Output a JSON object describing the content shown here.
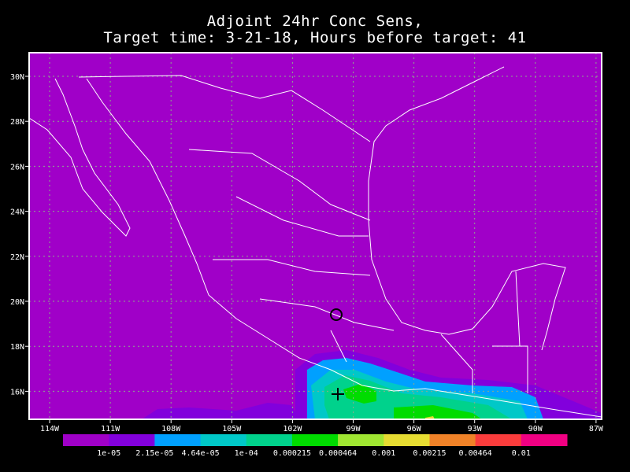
{
  "title": {
    "line1": "Adjoint 24hr Conc Sens,",
    "line2": "Target time: 3-21-18, Hours before target: 41"
  },
  "map": {
    "lon_range": [
      "115W",
      "86.7W"
    ],
    "lat_range": [
      "14.7N",
      "31N"
    ],
    "lon_ticks": [
      "114W",
      "111W",
      "108W",
      "105W",
      "102W",
      "99W",
      "96W",
      "93W",
      "90W",
      "87W"
    ],
    "lat_ticks": [
      "30N",
      "28N",
      "26N",
      "24N",
      "22N",
      "20N",
      "18N",
      "16N"
    ],
    "grid": true,
    "background_color": "#a000c8",
    "coastline_color": "#ffffff",
    "gridline_color": "#8caa8c",
    "markers": [
      {
        "type": "circle-icon",
        "lon": "99.1W",
        "lat": "19.4N"
      },
      {
        "type": "plus-icon",
        "lon": "99.0W",
        "lat": "15.9N"
      }
    ]
  },
  "colorbar": {
    "colors": [
      "#a000c8",
      "#8200dc",
      "#00a0ff",
      "#00c8c8",
      "#00d28c",
      "#00dc00",
      "#a0e632",
      "#e6dc32",
      "#f08228",
      "#fa3c3c",
      "#f00082"
    ],
    "labels": [
      "1e-05",
      "2.15e-05",
      "4.64e-05",
      "1e-04",
      "0.000215",
      "0.000464",
      "0.001",
      "0.00215",
      "0.00464",
      "0.01"
    ]
  }
}
